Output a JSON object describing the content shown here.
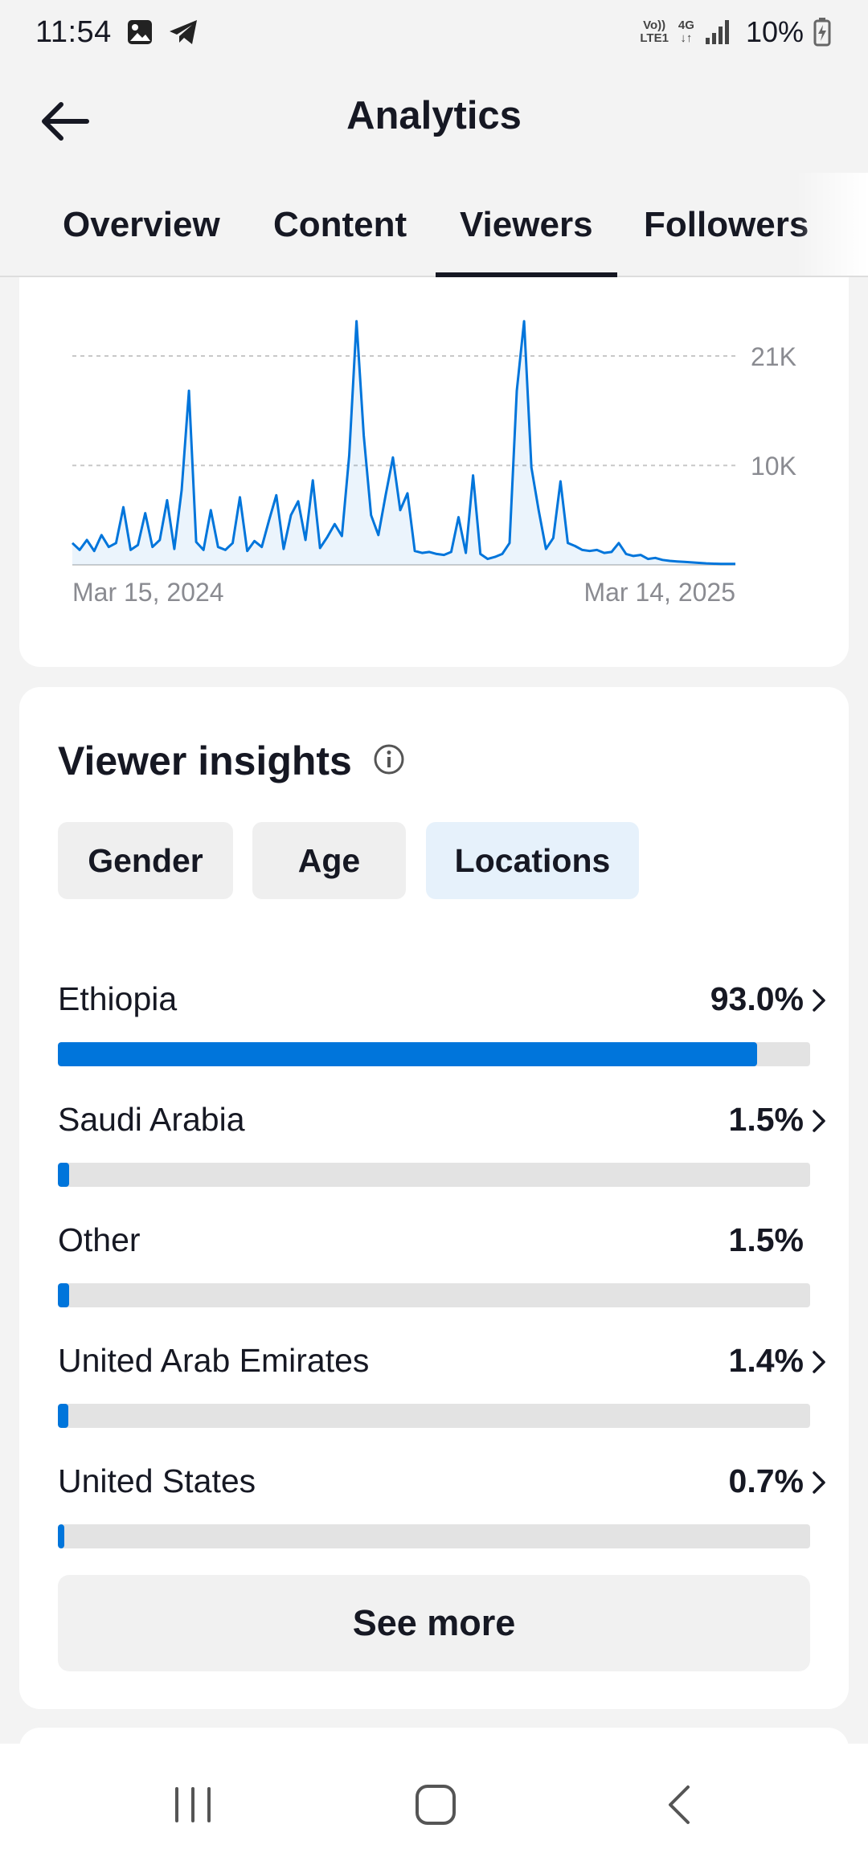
{
  "status_bar": {
    "time": "11:54",
    "icons": [
      "gallery-icon",
      "telegram-icon"
    ],
    "network_top": "Vo))",
    "network_bottom": "LTE1",
    "network_4g": "4G",
    "battery": "10%"
  },
  "header": {
    "title": "Analytics",
    "back_icon": "arrow-left-icon"
  },
  "tabs": [
    {
      "label": "Overview",
      "active": false
    },
    {
      "label": "Content",
      "active": false
    },
    {
      "label": "Viewers",
      "active": true
    },
    {
      "label": "Followers",
      "active": false
    }
  ],
  "chart_data": {
    "type": "line",
    "title": "",
    "x_start_label": "Mar 15, 2024",
    "x_end_label": "Mar 14, 2025",
    "ytick_labels": [
      "21K",
      "10K"
    ],
    "yticks": [
      21000,
      10000
    ],
    "ylim": [
      0,
      24000
    ],
    "grid": "dashed horizontal",
    "color": "#0075db",
    "x": [
      0,
      4,
      8,
      12,
      16,
      20,
      24,
      28,
      32,
      36,
      40,
      44,
      48,
      52,
      56,
      60,
      64,
      68,
      72,
      76,
      80,
      84,
      88,
      92,
      96,
      100,
      104,
      108,
      112,
      116,
      120,
      124,
      128,
      132,
      136,
      140,
      144,
      148,
      152,
      156,
      160,
      164,
      168,
      172,
      176,
      180,
      184,
      188,
      192,
      196,
      200,
      204,
      208,
      212,
      216,
      220,
      224,
      228,
      232,
      236,
      240,
      244,
      248,
      252,
      256,
      260,
      264,
      268,
      272,
      276,
      280,
      284,
      288,
      292,
      296,
      300,
      304,
      308,
      312,
      316,
      320,
      324,
      328,
      332,
      336,
      340,
      344,
      348,
      352,
      356,
      360,
      364
    ],
    "values": [
      2200,
      1500,
      2500,
      1400,
      3000,
      1800,
      2200,
      5800,
      1500,
      2000,
      5200,
      1800,
      2500,
      6500,
      1600,
      7500,
      17500,
      2300,
      1500,
      5500,
      1800,
      1500,
      2200,
      6800,
      1400,
      2400,
      1800,
      4500,
      7000,
      1600,
      5000,
      6400,
      2500,
      8500,
      1700,
      2800,
      4100,
      2900,
      11000,
      24500,
      13000,
      5000,
      3000,
      7000,
      10800,
      5500,
      7200,
      1400,
      1200,
      1300,
      1100,
      1000,
      1300,
      4800,
      1200,
      9000,
      1100,
      600,
      800,
      1100,
      2200,
      17500,
      24500,
      9800,
      5500,
      1600,
      2700,
      8400,
      2200,
      1900,
      1500,
      1400,
      1500,
      1200,
      1300,
      2200,
      1100,
      900,
      1000,
      600,
      700,
      500,
      400,
      350,
      300,
      250,
      200,
      150,
      120,
      100,
      100,
      100
    ],
    "x_range_days": 364
  },
  "insights": {
    "title": "Viewer insights",
    "info_icon": "info-icon",
    "filters": [
      {
        "label": "Gender",
        "selected": false
      },
      {
        "label": "Age",
        "selected": false
      },
      {
        "label": "Locations",
        "selected": true
      }
    ],
    "locations": [
      {
        "name": "Ethiopia",
        "percent": "93.0%",
        "fraction": 0.93,
        "chevron": true
      },
      {
        "name": "Saudi Arabia",
        "percent": "1.5%",
        "fraction": 0.015,
        "chevron": true
      },
      {
        "name": "Other",
        "percent": "1.5%",
        "fraction": 0.015,
        "chevron": false
      },
      {
        "name": "United Arab Emirates",
        "percent": "1.4%",
        "fraction": 0.014,
        "chevron": true
      },
      {
        "name": "United States",
        "percent": "0.7%",
        "fraction": 0.007,
        "chevron": true
      }
    ],
    "see_more_label": "See more"
  },
  "nav_bar": {
    "icons": [
      "recent-apps-icon",
      "home-icon",
      "back-nav-icon"
    ]
  }
}
